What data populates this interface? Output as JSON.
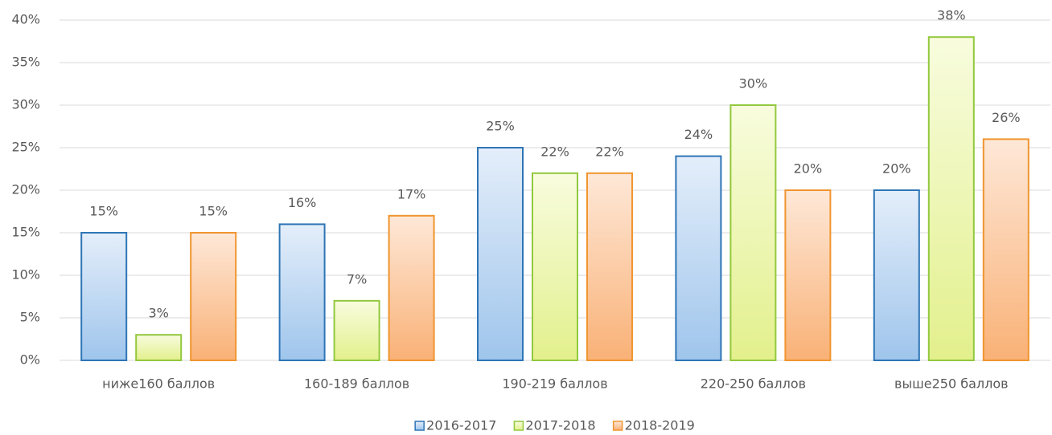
{
  "chart_data": {
    "type": "bar",
    "categories": [
      "ниже160 баллов",
      "160-189 баллов",
      "190-219 баллов",
      "220-250 баллов",
      "выше250 баллов"
    ],
    "series": [
      {
        "name": "2016-2017",
        "color": "#2e75b6",
        "values": [
          15,
          16,
          25,
          24,
          20
        ],
        "value_labels": [
          "15%",
          "16%",
          "25%",
          "24%",
          "20%"
        ]
      },
      {
        "name": "2017-2018",
        "color": "#92c83e",
        "values": [
          3,
          7,
          22,
          30,
          38
        ],
        "value_labels": [
          "3%",
          "7%",
          "22%",
          "30%",
          "38%"
        ]
      },
      {
        "name": "2018-2019",
        "color": "#f0952f",
        "values": [
          15,
          17,
          22,
          20,
          26
        ],
        "value_labels": [
          "15%",
          "17%",
          "22%",
          "20%",
          "26%"
        ]
      }
    ],
    "ylim": [
      0,
      40
    ],
    "yticks": [
      {
        "value": 0,
        "label": "0%"
      },
      {
        "value": 5,
        "label": "5%"
      },
      {
        "value": 10,
        "label": "10%"
      },
      {
        "value": 15,
        "label": "15%"
      },
      {
        "value": 20,
        "label": "20%"
      },
      {
        "value": 25,
        "label": "25%"
      },
      {
        "value": 30,
        "label": "30%"
      },
      {
        "value": 35,
        "label": "35%"
      },
      {
        "value": 40,
        "label": "40%"
      }
    ],
    "grid": true,
    "legend": "bottom"
  }
}
